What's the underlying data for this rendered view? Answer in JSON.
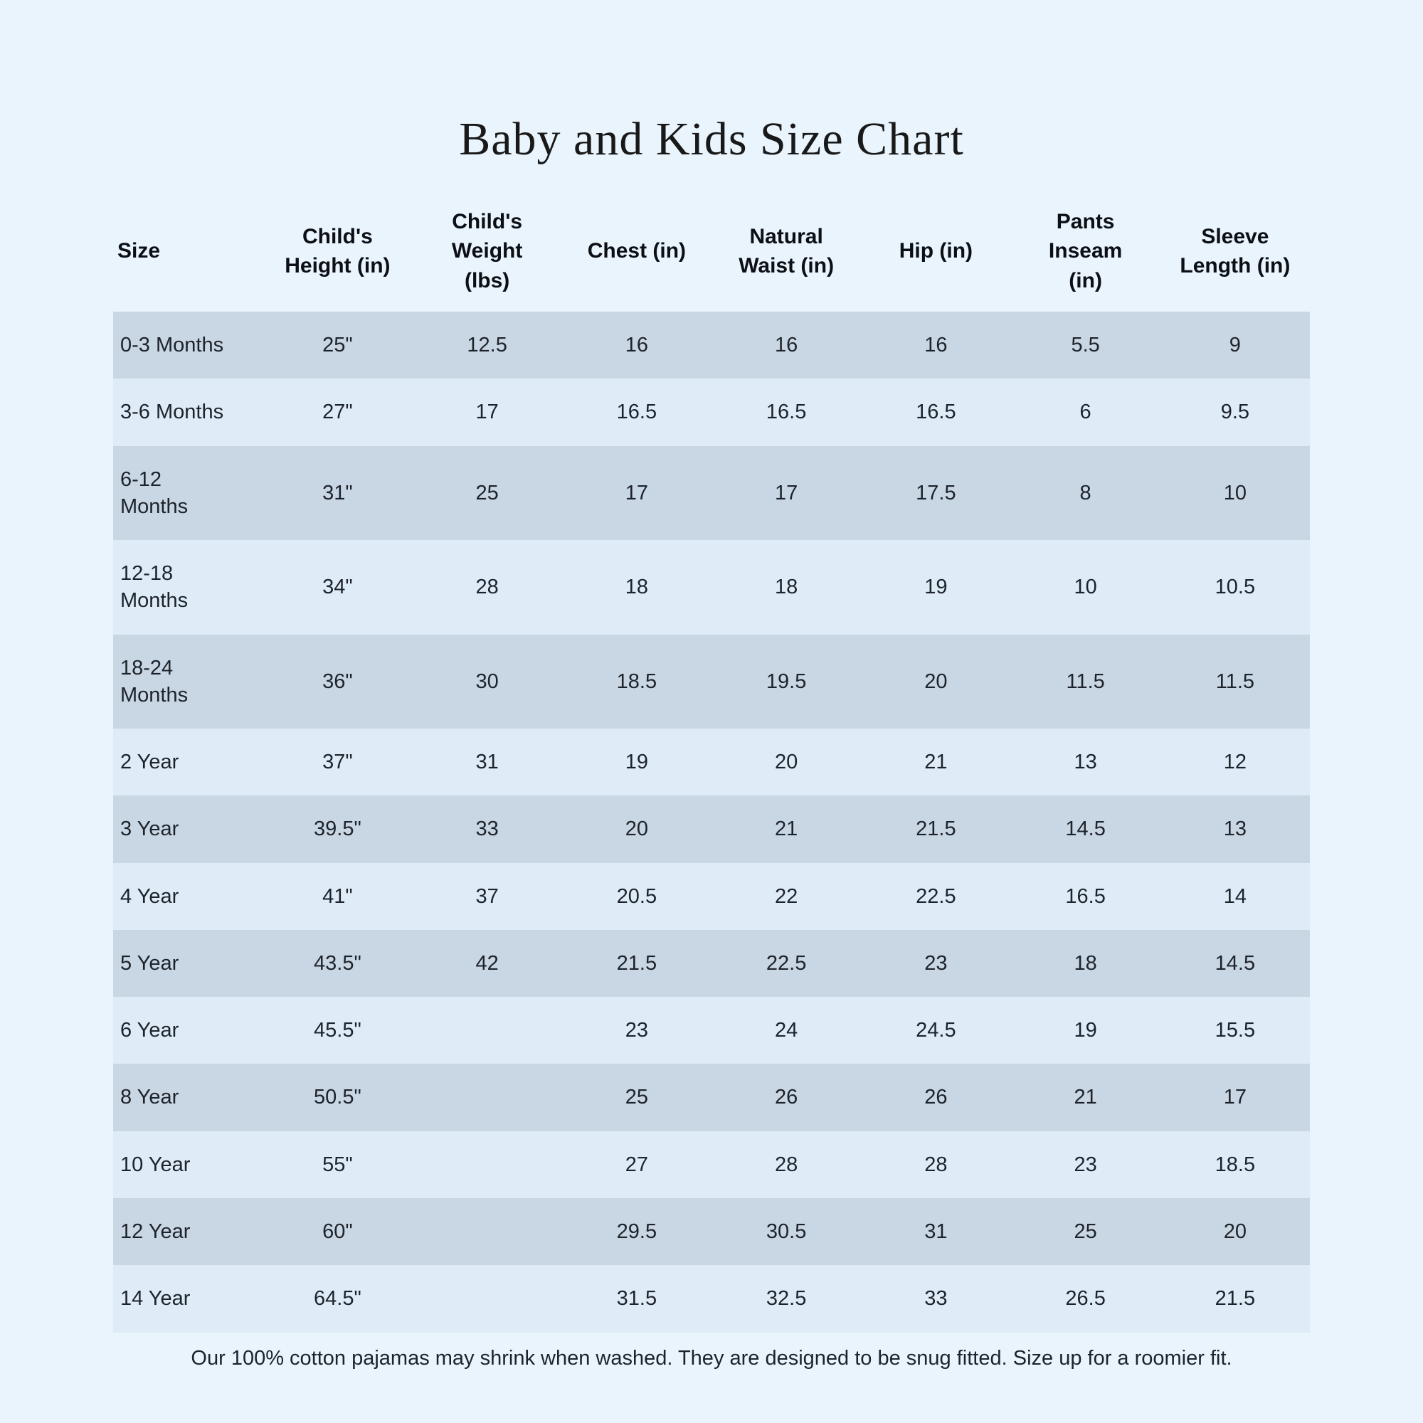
{
  "title": "Baby and Kids Size Chart",
  "chart_data": {
    "type": "table",
    "columns": [
      {
        "key": "size",
        "label": "Size"
      },
      {
        "key": "height",
        "label": "Child's\nHeight (in)"
      },
      {
        "key": "weight",
        "label": "Child's\nWeight\n(lbs)"
      },
      {
        "key": "chest",
        "label": "Chest (in)"
      },
      {
        "key": "waist",
        "label": "Natural\nWaist (in)"
      },
      {
        "key": "hip",
        "label": "Hip (in)"
      },
      {
        "key": "inseam",
        "label": "Pants\nInseam\n(in)"
      },
      {
        "key": "sleeve",
        "label": "Sleeve\nLength (in)"
      }
    ],
    "rows": [
      {
        "size": "0-3 Months",
        "height": "25\"",
        "weight": "12.5",
        "chest": "16",
        "waist": "16",
        "hip": "16",
        "inseam": "5.5",
        "sleeve": "9"
      },
      {
        "size": "3-6 Months",
        "height": "27\"",
        "weight": "17",
        "chest": "16.5",
        "waist": "16.5",
        "hip": "16.5",
        "inseam": "6",
        "sleeve": "9.5"
      },
      {
        "size": "6-12\nMonths",
        "height": "31\"",
        "weight": "25",
        "chest": "17",
        "waist": "17",
        "hip": "17.5",
        "inseam": "8",
        "sleeve": "10"
      },
      {
        "size": "12-18\nMonths",
        "height": "34\"",
        "weight": "28",
        "chest": "18",
        "waist": "18",
        "hip": "19",
        "inseam": "10",
        "sleeve": "10.5"
      },
      {
        "size": "18-24\nMonths",
        "height": "36\"",
        "weight": "30",
        "chest": "18.5",
        "waist": "19.5",
        "hip": "20",
        "inseam": "11.5",
        "sleeve": "11.5"
      },
      {
        "size": "2 Year",
        "height": "37\"",
        "weight": "31",
        "chest": "19",
        "waist": "20",
        "hip": "21",
        "inseam": "13",
        "sleeve": "12"
      },
      {
        "size": "3 Year",
        "height": "39.5\"",
        "weight": "33",
        "chest": "20",
        "waist": "21",
        "hip": "21.5",
        "inseam": "14.5",
        "sleeve": "13"
      },
      {
        "size": "4 Year",
        "height": "41\"",
        "weight": "37",
        "chest": "20.5",
        "waist": "22",
        "hip": "22.5",
        "inseam": "16.5",
        "sleeve": "14"
      },
      {
        "size": "5 Year",
        "height": "43.5\"",
        "weight": "42",
        "chest": "21.5",
        "waist": "22.5",
        "hip": "23",
        "inseam": "18",
        "sleeve": "14.5"
      },
      {
        "size": "6 Year",
        "height": "45.5\"",
        "weight": "",
        "chest": "23",
        "waist": "24",
        "hip": "24.5",
        "inseam": "19",
        "sleeve": "15.5"
      },
      {
        "size": "8 Year",
        "height": "50.5\"",
        "weight": "",
        "chest": "25",
        "waist": "26",
        "hip": "26",
        "inseam": "21",
        "sleeve": "17"
      },
      {
        "size": "10 Year",
        "height": "55\"",
        "weight": "",
        "chest": "27",
        "waist": "28",
        "hip": "28",
        "inseam": "23",
        "sleeve": "18.5"
      },
      {
        "size": "12 Year",
        "height": "60\"",
        "weight": "",
        "chest": "29.5",
        "waist": "30.5",
        "hip": "31",
        "inseam": "25",
        "sleeve": "20"
      },
      {
        "size": "14 Year",
        "height": "64.5\"",
        "weight": "",
        "chest": "31.5",
        "waist": "32.5",
        "hip": "33",
        "inseam": "26.5",
        "sleeve": "21.5"
      }
    ]
  },
  "footer_note": "Our 100% cotton pajamas may shrink when washed. They are designed to be snug fitted. Size up for a roomier fit.",
  "colors": {
    "page_bg": "#e9f4fd",
    "row_light": "#dfecf8",
    "row_shaded": "#c9d6e3",
    "text": "#1d232b",
    "title_text": "#191919"
  }
}
